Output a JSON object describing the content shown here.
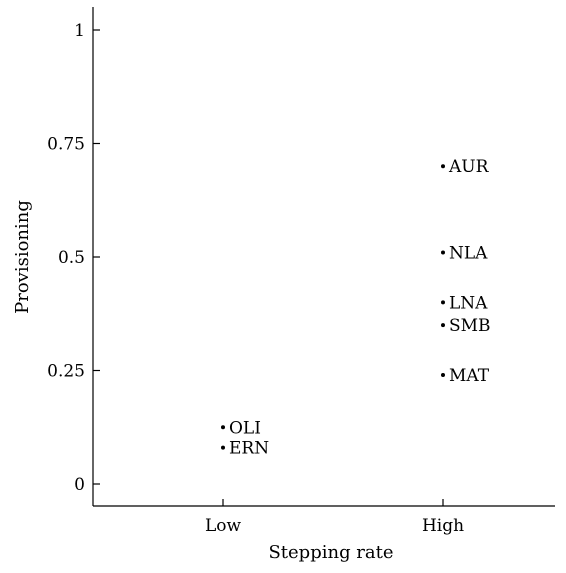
{
  "chart_data": {
    "type": "scatter",
    "xlabel": "Stepping rate",
    "ylabel": "Provisioning",
    "categories": [
      "Low",
      "High"
    ],
    "ylim": [
      -0.05,
      1.05
    ],
    "y_ticks": [
      0,
      0.25,
      0.5,
      0.75,
      1
    ],
    "y_tick_labels": [
      "0",
      "0.25",
      "0.5",
      "0.75",
      "1"
    ],
    "grid": false,
    "points": [
      {
        "label": "AUR",
        "x": "High",
        "y": 0.7
      },
      {
        "label": "NLA",
        "x": "High",
        "y": 0.51
      },
      {
        "label": "LNA",
        "x": "High",
        "y": 0.4
      },
      {
        "label": "SMB",
        "x": "High",
        "y": 0.35
      },
      {
        "label": "MAT",
        "x": "High",
        "y": 0.24
      },
      {
        "label": "OLI",
        "x": "Low",
        "y": 0.125
      },
      {
        "label": "ERN",
        "x": "Low",
        "y": 0.08
      }
    ]
  }
}
